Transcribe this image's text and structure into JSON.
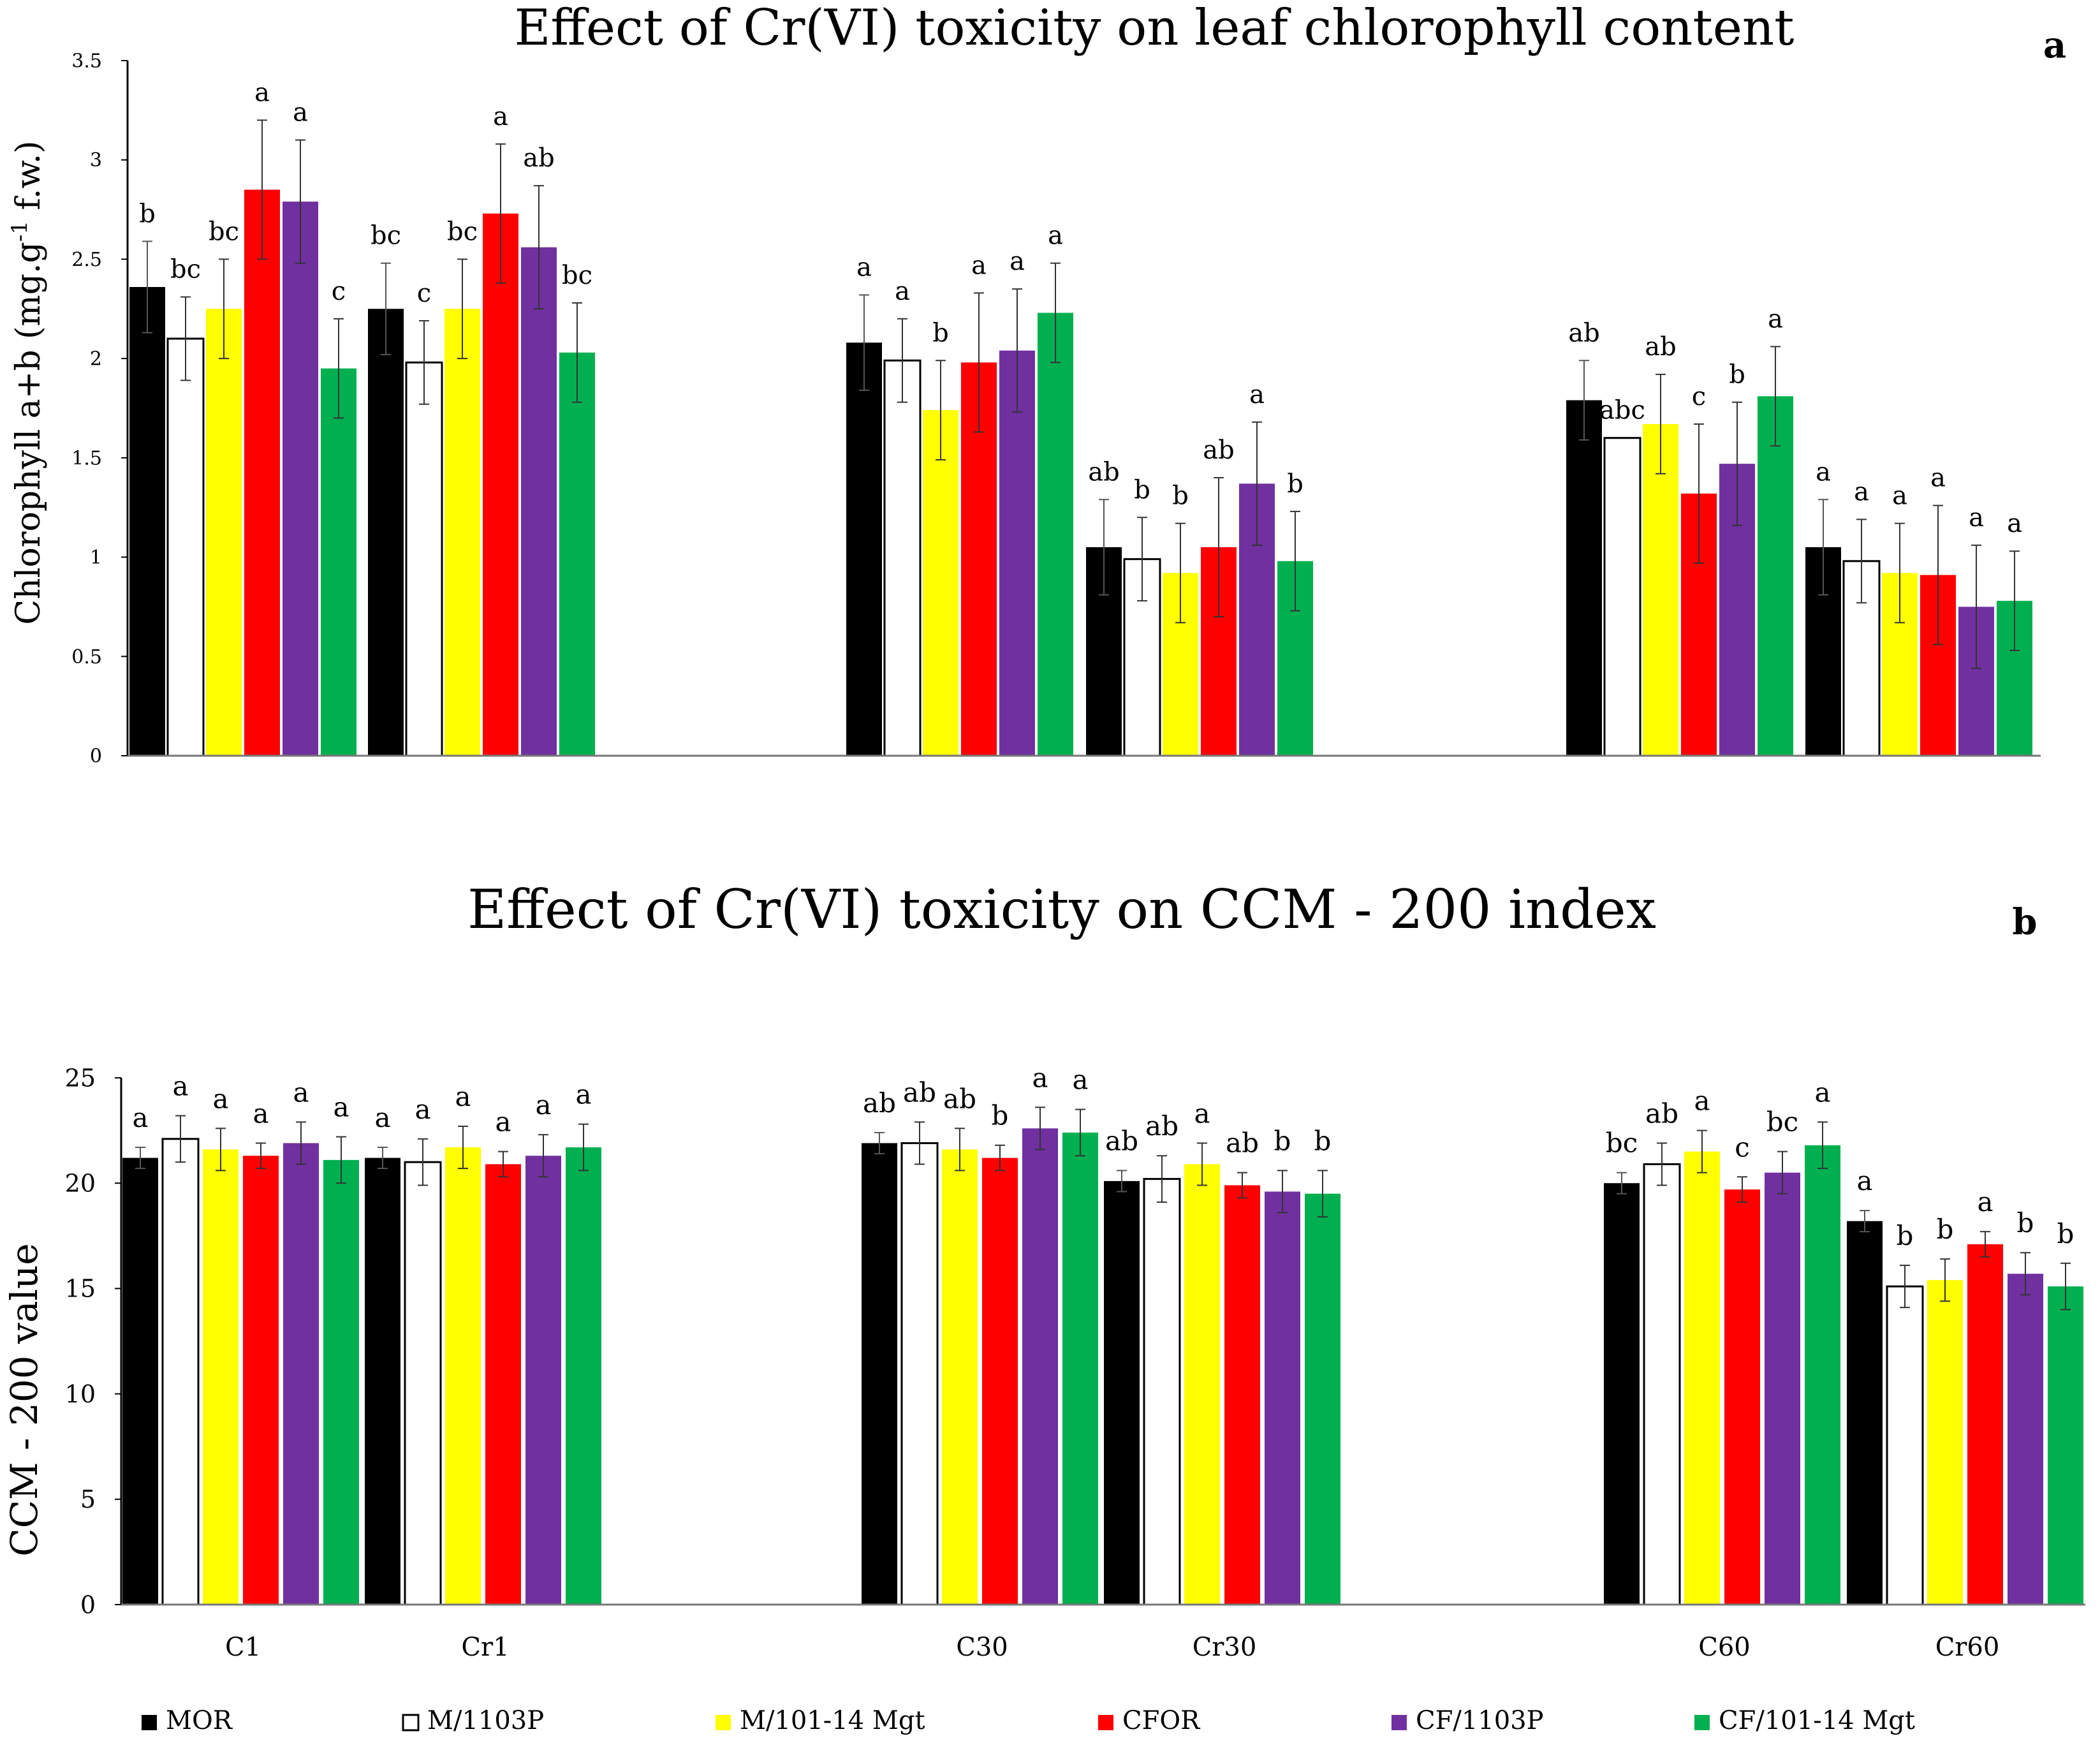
{
  "series_colors": {
    "MOR": "#000000",
    "M/1103P": "#ffffff",
    "M/101-14 Mgt": "#ffff00",
    "CFOR": "#ff0000",
    "CF/1103P": "#7030a0",
    "CF/101-14 Mgt": "#00b050"
  },
  "legend": [
    "MOR",
    "M/1103P",
    "M/101-14 Mgt",
    "CFOR",
    "CF/1103P",
    "CF/101-14 Mgt"
  ],
  "chart_data": [
    {
      "type": "bar",
      "panel_label": "a",
      "title": "Effect of Cr(VI) toxicity on leaf chlorophyll content",
      "ylabel_main": "Chlorophyll a+b (mg.g",
      "ylabel_sup": "-1",
      "ylabel_tail": " f.w.)",
      "xlabel": "",
      "ylim": [
        0,
        3.5
      ],
      "yticks": [
        "0",
        "0.5",
        "1",
        "1.5",
        "2",
        "2.5",
        "3",
        "3.5"
      ],
      "categories": [
        "C1",
        "Cr1",
        "C30",
        "Cr30",
        "C60",
        "Cr60"
      ],
      "series": [
        {
          "name": "MOR",
          "values": [
            2.36,
            2.25,
            2.08,
            1.05,
            1.79,
            1.05
          ],
          "errors": [
            0.23,
            0.23,
            0.24,
            0.24,
            0.2,
            0.24
          ],
          "letters": [
            "b",
            "bc",
            "a",
            "ab",
            "ab",
            "a"
          ]
        },
        {
          "name": "M/1103P",
          "values": [
            2.1,
            1.98,
            1.99,
            0.99,
            1.6,
            0.98
          ],
          "errors": [
            0.21,
            0.21,
            0.21,
            0.21,
            0.0,
            0.21
          ],
          "letters": [
            "bc",
            "c",
            "a",
            "b",
            "abc",
            "a"
          ]
        },
        {
          "name": "M/101-14 Mgt",
          "values": [
            2.25,
            2.25,
            1.74,
            0.92,
            1.67,
            0.92
          ],
          "errors": [
            0.25,
            0.25,
            0.25,
            0.25,
            0.25,
            0.25
          ],
          "letters": [
            "bc",
            "bc",
            "b",
            "b",
            "ab",
            "a"
          ]
        },
        {
          "name": "CFOR",
          "values": [
            2.85,
            2.73,
            1.98,
            1.05,
            1.32,
            0.91
          ],
          "errors": [
            0.35,
            0.35,
            0.35,
            0.35,
            0.35,
            0.35
          ],
          "letters": [
            "a",
            "a",
            "a",
            "ab",
            "c",
            "a"
          ]
        },
        {
          "name": "CF/1103P",
          "values": [
            2.79,
            2.56,
            2.04,
            1.37,
            1.47,
            0.75
          ],
          "errors": [
            0.31,
            0.31,
            0.31,
            0.31,
            0.31,
            0.31
          ],
          "letters": [
            "a",
            "ab",
            "a",
            "a",
            "b",
            "a"
          ]
        },
        {
          "name": "CF/101-14 Mgt",
          "values": [
            1.95,
            2.03,
            2.23,
            0.98,
            1.81,
            0.78
          ],
          "errors": [
            0.25,
            0.25,
            0.25,
            0.25,
            0.25,
            0.25
          ],
          "letters": [
            "c",
            "bc",
            "a",
            "b",
            "a",
            "a"
          ]
        }
      ]
    },
    {
      "type": "bar",
      "panel_label": "b",
      "title": "Effect of Cr(VI) toxicity on CCM - 200 index",
      "ylabel": "CCM - 200 value",
      "xlabel": "",
      "ylim": [
        0,
        25
      ],
      "yticks": [
        "0",
        "5",
        "10",
        "15",
        "20",
        "25"
      ],
      "categories": [
        "C1",
        "Cr1",
        "C30",
        "Cr30",
        "C60",
        "Cr60"
      ],
      "series": [
        {
          "name": "MOR",
          "values": [
            21.2,
            21.2,
            21.9,
            20.1,
            20.0,
            18.2
          ],
          "errors": [
            0.5,
            0.5,
            0.5,
            0.5,
            0.5,
            0.5
          ],
          "letters": [
            "a",
            "a",
            "ab",
            "ab",
            "bc",
            "a"
          ]
        },
        {
          "name": "M/1103P",
          "values": [
            22.1,
            21.0,
            21.9,
            20.2,
            20.9,
            15.1
          ],
          "errors": [
            1.1,
            1.1,
            1.0,
            1.1,
            1.0,
            1.0
          ],
          "letters": [
            "a",
            "a",
            "ab",
            "ab",
            "ab",
            "b"
          ]
        },
        {
          "name": "M/101-14 Mgt",
          "values": [
            21.6,
            21.7,
            21.6,
            20.9,
            21.5,
            15.4
          ],
          "errors": [
            1.0,
            1.0,
            1.0,
            1.0,
            1.0,
            1.0
          ],
          "letters": [
            "a",
            "a",
            "ab",
            "a",
            "a",
            "b"
          ]
        },
        {
          "name": "CFOR",
          "values": [
            21.3,
            20.9,
            21.2,
            19.9,
            19.7,
            17.1
          ],
          "errors": [
            0.6,
            0.6,
            0.6,
            0.6,
            0.6,
            0.6
          ],
          "letters": [
            "a",
            "a",
            "b",
            "ab",
            "c",
            "a"
          ]
        },
        {
          "name": "CF/1103P",
          "values": [
            21.9,
            21.3,
            22.6,
            19.6,
            20.5,
            15.7
          ],
          "errors": [
            1.0,
            1.0,
            1.0,
            1.0,
            1.0,
            1.0
          ],
          "letters": [
            "a",
            "a",
            "a",
            "b",
            "bc",
            "b"
          ]
        },
        {
          "name": "CF/101-14 Mgt",
          "values": [
            21.1,
            21.7,
            22.4,
            19.5,
            21.8,
            15.1
          ],
          "errors": [
            1.1,
            1.1,
            1.1,
            1.1,
            1.1,
            1.1
          ],
          "letters": [
            "a",
            "a",
            "a",
            "b",
            "a",
            "b"
          ]
        }
      ]
    }
  ]
}
